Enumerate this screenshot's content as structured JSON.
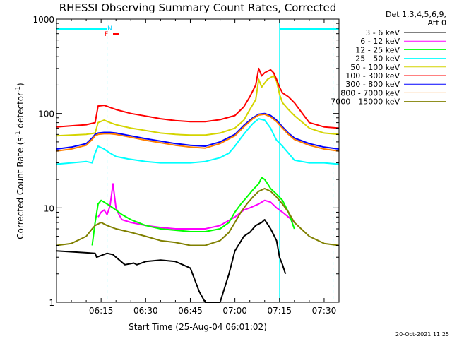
{
  "chart_data": {
    "type": "line",
    "title": "RHESSI Observing Summary Count Rates, Corrected",
    "xlabel": "Start Time (25-Aug-04 06:01:02)",
    "ylabel": "Corrected Count Rate (s⁻¹ detector⁻¹)",
    "ylabel_main": "Corrected Count Rate (s",
    "ylabel_mid": " detector",
    "ylabel_end": ")",
    "ylabel_sup": "-1",
    "yscale": "log",
    "ylim": [
      1,
      1000
    ],
    "xlim_minutes": [
      0,
      95
    ],
    "x_ticks": [
      "06:15",
      "06:30",
      "06:45",
      "07:00",
      "07:15",
      "07:30"
    ],
    "x_tick_minutes": [
      15,
      30,
      45,
      60,
      75,
      90
    ],
    "y_ticks": [
      "1",
      "10",
      "100",
      "1000"
    ],
    "y_tick_values": [
      1,
      10,
      100,
      1000
    ],
    "legend_header": [
      "Det 1,3,4,5,6,9,",
      "Att 0"
    ],
    "legend_position": "right",
    "flags": {
      "night_bars": [
        [
          0,
          17
        ],
        [
          75,
          95
        ]
      ],
      "night_label": "N",
      "flare_label": "F",
      "flare_bar": [
        19,
        21
      ],
      "dashed_lines_minutes": [
        17,
        93
      ],
      "solid_lines_minutes": [
        0,
        75
      ]
    },
    "series": [
      {
        "name": "3 - 6 keV",
        "color": "#000000",
        "x": [
          0,
          13,
          13.5,
          17,
          19,
          20,
          23,
          26,
          27,
          30,
          35,
          40,
          45,
          48,
          50,
          55,
          58,
          60,
          63,
          65,
          67,
          69,
          70,
          72,
          74,
          75,
          76,
          77
        ],
        "y": [
          3.5,
          3.3,
          3,
          3.3,
          3.2,
          3,
          2.5,
          2.6,
          2.5,
          2.7,
          2.8,
          2.7,
          2.3,
          1.3,
          1,
          1,
          2,
          3.5,
          5,
          5.5,
          6.5,
          7,
          7.5,
          6,
          4.5,
          3,
          2.5,
          2
        ]
      },
      {
        "name": "6 - 12 keV",
        "color": "#ff00ff",
        "x": [
          14,
          15,
          16,
          17,
          18,
          19,
          20,
          21,
          22,
          25,
          30,
          35,
          40,
          45,
          50,
          55,
          60,
          63,
          65,
          68,
          70,
          72,
          74,
          76,
          78,
          80
        ],
        "y": [
          8,
          9,
          9.5,
          8.5,
          10.5,
          18,
          10,
          8.5,
          7.5,
          7,
          6.5,
          6.2,
          6,
          6,
          6,
          6.5,
          8,
          9.5,
          10,
          11,
          12,
          11.5,
          10,
          9,
          8,
          7
        ]
      },
      {
        "name": "12 - 25 keV",
        "color": "#00ff00",
        "x": [
          12,
          13,
          14,
          15,
          16,
          18,
          20,
          22,
          25,
          30,
          35,
          40,
          45,
          50,
          55,
          58,
          60,
          62,
          64,
          66,
          68,
          69,
          70,
          71,
          72,
          74,
          76,
          78,
          80
        ],
        "y": [
          4,
          7,
          11,
          12,
          11.5,
          10.5,
          9.5,
          8.5,
          7.5,
          6.5,
          6,
          5.8,
          5.6,
          5.6,
          6,
          7,
          9,
          11,
          13,
          15.5,
          18,
          21,
          20,
          18,
          16,
          14,
          12,
          9,
          6
        ]
      },
      {
        "name": "25 - 50 keV",
        "color": "#00ffff",
        "x": [
          0,
          5,
          10,
          12,
          13,
          14,
          16,
          18,
          20,
          24,
          30,
          35,
          40,
          45,
          50,
          55,
          58,
          60,
          62,
          64,
          66,
          68,
          70,
          72,
          73,
          74,
          76,
          78,
          80,
          85,
          90,
          95
        ],
        "y": [
          29,
          30,
          31,
          30,
          38,
          45,
          42,
          38,
          35,
          33,
          31,
          30,
          30,
          30,
          31,
          34,
          38,
          45,
          55,
          66,
          78,
          88,
          85,
          70,
          60,
          52,
          45,
          38,
          32,
          30,
          30,
          29
        ]
      },
      {
        "name": "50 - 100 keV",
        "color": "#d4d400",
        "x": [
          0,
          5,
          10,
          13,
          14,
          16,
          18,
          20,
          25,
          30,
          35,
          40,
          45,
          50,
          55,
          60,
          63,
          65,
          67,
          68,
          69,
          70,
          71,
          72,
          73,
          74,
          75,
          76,
          78,
          80,
          85,
          90,
          95
        ],
        "y": [
          58,
          59,
          60,
          62,
          80,
          85,
          80,
          76,
          70,
          66,
          62,
          60,
          59,
          59,
          62,
          70,
          85,
          110,
          140,
          230,
          190,
          210,
          230,
          240,
          250,
          220,
          160,
          130,
          110,
          95,
          70,
          62,
          60
        ]
      },
      {
        "name": "100 - 300 keV",
        "color": "#ff0000",
        "x": [
          0,
          5,
          10,
          13,
          14,
          16,
          18,
          20,
          25,
          30,
          35,
          40,
          45,
          50,
          55,
          60,
          63,
          65,
          67,
          68,
          69,
          70,
          71,
          72,
          73,
          74,
          75,
          76,
          78,
          80,
          85,
          90,
          95
        ],
        "y": [
          72,
          74,
          76,
          80,
          120,
          122,
          116,
          110,
          100,
          94,
          88,
          84,
          82,
          82,
          86,
          95,
          118,
          150,
          200,
          300,
          250,
          270,
          280,
          290,
          270,
          230,
          190,
          165,
          150,
          130,
          80,
          72,
          70
        ]
      },
      {
        "name": "300 - 800 keV",
        "color": "#0000ff",
        "x": [
          0,
          5,
          10,
          12,
          13,
          14,
          16,
          18,
          20,
          25,
          30,
          35,
          40,
          45,
          50,
          55,
          60,
          63,
          66,
          68,
          70,
          72,
          74,
          76,
          78,
          80,
          85,
          90,
          95
        ],
        "y": [
          42,
          44,
          48,
          55,
          60,
          62,
          63,
          63,
          62,
          58,
          54,
          51,
          48,
          46,
          45,
          50,
          60,
          75,
          90,
          98,
          100,
          95,
          85,
          72,
          62,
          55,
          48,
          44,
          42
        ]
      },
      {
        "name": "800 - 7000 keV",
        "color": "#ff8000",
        "x": [
          0,
          5,
          10,
          12,
          13,
          14,
          16,
          18,
          20,
          25,
          30,
          35,
          40,
          45,
          50,
          55,
          60,
          63,
          66,
          68,
          70,
          72,
          74,
          76,
          78,
          80,
          85,
          90,
          95
        ],
        "y": [
          40,
          42,
          46,
          53,
          58,
          60,
          61,
          61,
          60,
          56,
          52,
          49,
          46,
          44,
          43,
          48,
          58,
          72,
          88,
          96,
          98,
          92,
          82,
          70,
          60,
          53,
          46,
          42,
          40
        ]
      },
      {
        "name": "7000 - 15000 keV",
        "color": "#808000",
        "x": [
          0,
          5,
          10,
          12,
          13,
          15,
          17,
          20,
          25,
          30,
          35,
          40,
          45,
          50,
          55,
          58,
          60,
          62,
          64,
          66,
          68,
          70,
          72,
          74,
          76,
          78,
          80,
          85,
          90,
          95
        ],
        "y": [
          4,
          4.2,
          5,
          6,
          6.5,
          7,
          6.5,
          6,
          5.5,
          5,
          4.5,
          4.3,
          4,
          4,
          4.5,
          5.5,
          7,
          9,
          11,
          13,
          15,
          16,
          15,
          13,
          11,
          9,
          7,
          5,
          4.2,
          4
        ]
      }
    ]
  },
  "footer_timestamp": "20-Oct-2021 11:25"
}
